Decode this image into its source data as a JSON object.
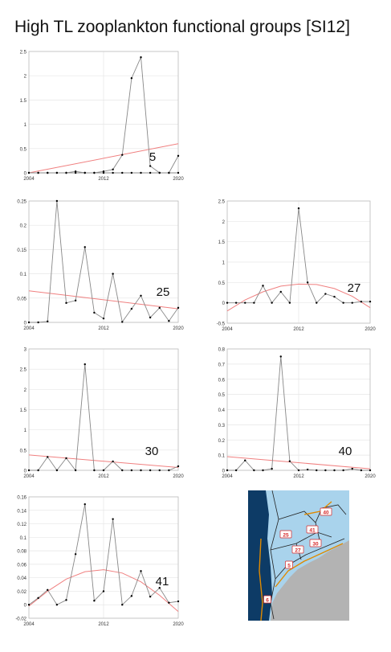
{
  "page_title": "High TL zooplankton functional groups [SI12]",
  "colors": {
    "observed_line": "#888888",
    "observed_point": "#000000",
    "trend_line": "#f08080",
    "grid": "#e6e6e6",
    "axes_box": "#bdbdbd",
    "map_ocean_deep": "#0d3b66",
    "map_ocean_shelf": "#a9d3ec",
    "map_land": "#b3b3b3",
    "map_region_label": "#d62728",
    "map_coast_line": "#e08a00"
  },
  "chart_data": [
    {
      "type": "line",
      "panel_label": "5",
      "x": [
        2004,
        2005,
        2006,
        2007,
        2008,
        2009,
        2010,
        2011,
        2012,
        2013,
        2014,
        2015,
        2016,
        2017,
        2018,
        2019,
        2020
      ],
      "series": [
        {
          "values": [
            0.0,
            0.0,
            0.0,
            0.0,
            0.0,
            0.03,
            0.0,
            0.0,
            0.03,
            0.07,
            0.37,
            1.95,
            2.38,
            0.14,
            0.0,
            0.0,
            0.0
          ]
        },
        {
          "values": [
            0.0,
            0.0,
            0.0,
            0.0,
            0.0,
            0.0,
            0.0,
            0.0,
            0.0,
            0.0,
            0.0,
            0.0,
            0.0,
            0.0,
            0.0,
            0.0,
            0.35
          ]
        }
      ],
      "trend": {
        "x": [
          2004,
          2020
        ],
        "y": [
          0.0,
          0.6
        ]
      },
      "xticks": [
        2004,
        2012,
        2020
      ],
      "yticks": [
        0,
        0.5,
        1,
        1.5,
        2,
        2.5
      ],
      "ytick_labels": [
        "0",
        "0.5",
        "1",
        "1.5",
        "2",
        "2.5"
      ],
      "ylim": [
        0,
        2.5
      ],
      "grid": true
    },
    {
      "type": "line",
      "panel_label": "25",
      "x": [
        2004,
        2005,
        2006,
        2007,
        2008,
        2009,
        2010,
        2011,
        2012,
        2013,
        2014,
        2015,
        2016,
        2017,
        2018,
        2019,
        2020
      ],
      "series": [
        {
          "values": [
            0.0,
            0.0,
            0.002,
            0.25,
            0.04,
            0.045,
            0.155,
            0.02,
            0.008,
            0.1,
            0.001,
            0.028,
            0.055,
            0.01,
            0.03,
            0.003,
            0.03
          ]
        }
      ],
      "trend": {
        "x": [
          2004,
          2020
        ],
        "y": [
          0.065,
          0.028
        ]
      },
      "xticks": [
        2004,
        2012,
        2020
      ],
      "yticks": [
        0,
        0.05,
        0.1,
        0.15,
        0.2,
        0.25
      ],
      "ytick_labels": [
        "0",
        "0.05",
        "0.1",
        "0.15",
        "0.2",
        "0.25"
      ],
      "ylim": [
        0,
        0.25
      ],
      "grid": true
    },
    {
      "type": "line",
      "panel_label": "27",
      "x": [
        2004,
        2005,
        2006,
        2007,
        2008,
        2009,
        2010,
        2011,
        2012,
        2013,
        2014,
        2015,
        2016,
        2017,
        2018,
        2019,
        2020
      ],
      "series": [
        {
          "values": [
            0.0,
            0.0,
            0.0,
            0.0,
            0.42,
            0.0,
            0.27,
            0.0,
            2.32,
            0.5,
            0.0,
            0.22,
            0.15,
            0.0,
            0.0,
            0.03,
            0.03
          ]
        }
      ],
      "trend": {
        "x": [
          2004,
          2006,
          2008,
          2010,
          2012,
          2014,
          2016,
          2018,
          2020
        ],
        "y": [
          -0.2,
          0.07,
          0.27,
          0.41,
          0.46,
          0.45,
          0.35,
          0.16,
          -0.12
        ]
      },
      "xticks": [
        2004,
        2012,
        2020
      ],
      "yticks": [
        -0.5,
        0,
        0.5,
        1,
        1.5,
        2,
        2.5
      ],
      "ytick_labels": [
        "-0.5",
        "0",
        "0.5",
        "1",
        "1.5",
        "2",
        "2.5"
      ],
      "ylim": [
        -0.5,
        2.5
      ],
      "grid": true
    },
    {
      "type": "line",
      "panel_label": "30",
      "x": [
        2004,
        2005,
        2006,
        2007,
        2008,
        2009,
        2010,
        2011,
        2012,
        2013,
        2014,
        2015,
        2016,
        2017,
        2018,
        2019,
        2020
      ],
      "series": [
        {
          "values": [
            0.0,
            0.0,
            0.33,
            0.0,
            0.3,
            0.0,
            2.62,
            0.0,
            0.0,
            0.22,
            0.0,
            0.0,
            0.0,
            0.0,
            0.0,
            0.0,
            0.1
          ]
        }
      ],
      "trend": {
        "x": [
          2004,
          2020
        ],
        "y": [
          0.38,
          0.07
        ]
      },
      "xticks": [
        2004,
        2012,
        2020
      ],
      "yticks": [
        0,
        0.5,
        1,
        1.5,
        2,
        2.5,
        3
      ],
      "ytick_labels": [
        "0",
        "0.5",
        "1",
        "1.5",
        "2",
        "2.5",
        "3"
      ],
      "ylim": [
        0,
        3
      ],
      "grid": true
    },
    {
      "type": "line",
      "panel_label": "40",
      "x": [
        2004,
        2005,
        2006,
        2007,
        2008,
        2009,
        2010,
        2011,
        2012,
        2013,
        2014,
        2015,
        2016,
        2017,
        2018,
        2019,
        2020
      ],
      "series": [
        {
          "values": [
            0.0,
            0.0,
            0.065,
            0.0,
            0.0,
            0.01,
            0.75,
            0.06,
            0.0,
            0.005,
            0.0,
            0.0,
            0.0,
            0.0,
            0.01,
            0.0,
            0.0
          ]
        }
      ],
      "trend": {
        "x": [
          2004,
          2020
        ],
        "y": [
          0.09,
          0.01
        ]
      },
      "xticks": [
        2004,
        2012,
        2020
      ],
      "yticks": [
        0,
        0.1,
        0.2,
        0.3,
        0.4,
        0.5,
        0.6,
        0.7,
        0.8
      ],
      "ytick_labels": [
        "0",
        "0.1",
        "0.2",
        "0.3",
        "0.4",
        "0.5",
        "0.6",
        "0.7",
        "0.8"
      ],
      "ylim": [
        0,
        0.8
      ],
      "grid": true
    },
    {
      "type": "line",
      "panel_label": "41",
      "x": [
        2004,
        2005,
        2006,
        2007,
        2008,
        2009,
        2010,
        2011,
        2012,
        2013,
        2014,
        2015,
        2016,
        2017,
        2018,
        2019,
        2020
      ],
      "series": [
        {
          "values": [
            0.0,
            0.01,
            0.022,
            0.0,
            0.007,
            0.075,
            0.149,
            0.006,
            0.02,
            0.127,
            0.0,
            0.013,
            0.05,
            0.012,
            0.025,
            0.003,
            0.005
          ]
        }
      ],
      "trend": {
        "x": [
          2004,
          2006,
          2008,
          2010,
          2012,
          2014,
          2016,
          2018,
          2020
        ],
        "y": [
          -0.002,
          0.02,
          0.038,
          0.049,
          0.052,
          0.047,
          0.034,
          0.014,
          -0.01
        ]
      },
      "xticks": [
        2004,
        2012,
        2020
      ],
      "yticks": [
        -0.02,
        0,
        0.02,
        0.04,
        0.06,
        0.08,
        0.1,
        0.12,
        0.14,
        0.16
      ],
      "ytick_labels": [
        "-0.02",
        "0",
        "0.02",
        "0.04",
        "0.06",
        "0.08",
        "0.1",
        "0.12",
        "0.14",
        "0.16"
      ],
      "ylim": [
        -0.02,
        0.16
      ],
      "grid": true
    }
  ],
  "map": {
    "region_labels": [
      "40",
      "41",
      "25",
      "30",
      "27",
      "5",
      "6"
    ]
  }
}
